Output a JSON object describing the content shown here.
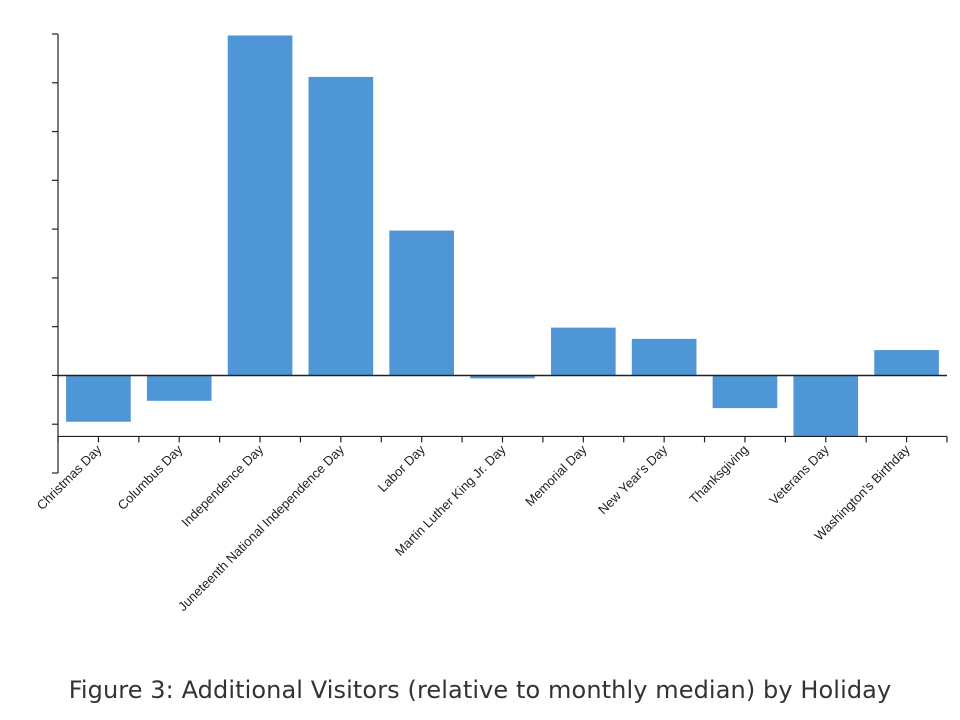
{
  "chart_data": {
    "type": "bar",
    "title": "Figure 3: Additional Visitors (relative to monthly median) by Holiday",
    "xlabel": "",
    "ylabel": "",
    "categories": [
      "Christmas Day",
      "Columbus Day",
      "Independence Day",
      "Juneteenth National Independence Day",
      "Labor Day",
      "Martin Luther King Jr. Day",
      "Memorial Day",
      "New Year's Day",
      "Thanksgiving",
      "Veterans Day",
      "Washington's Birthday"
    ],
    "values": [
      -0.95,
      -0.52,
      6.97,
      6.12,
      2.97,
      -0.06,
      0.98,
      0.75,
      -0.67,
      -1.25,
      0.52
    ],
    "ylim": [
      -2,
      7
    ],
    "yticks": [
      -1,
      0,
      1,
      2,
      3,
      4,
      5,
      6,
      7
    ],
    "ytick_labels_visible": false,
    "x_axis_at": -1.25,
    "bar_color": "#4f96d6",
    "axis_color": "#222222",
    "grid": false
  }
}
